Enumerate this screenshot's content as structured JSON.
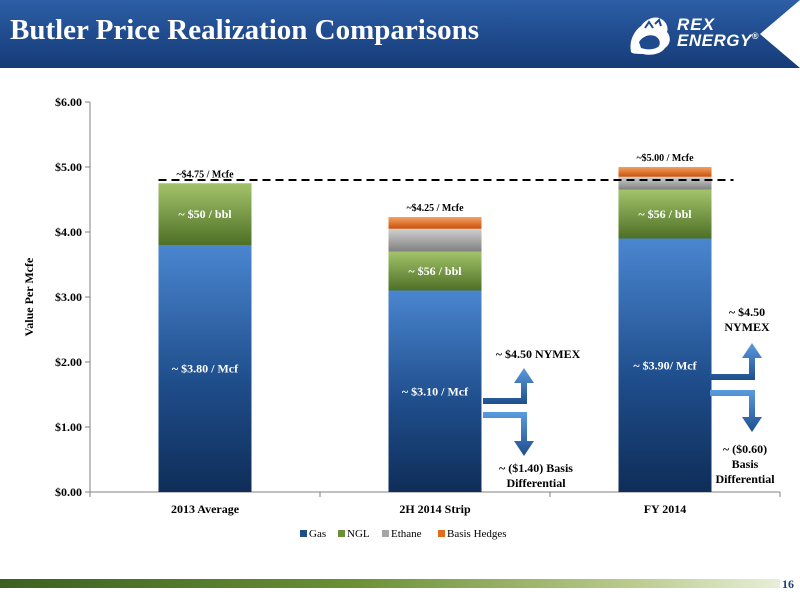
{
  "title": "Butler Price Realization Comparisons",
  "logo": {
    "line1": "REX",
    "line2": "ENERGY",
    "trademark": "®",
    "icon": "lion-icon"
  },
  "page_number": "16",
  "colors": {
    "gas": "#1f4e8c",
    "ngl": "#6b8e3a",
    "ethane": "#a6a6a6",
    "basis_hedges": "#e36c1a",
    "header": "#1f4a8c",
    "arrow": "#3c78c8"
  },
  "chart_data": {
    "type": "bar",
    "stacked": true,
    "categories": [
      "2013 Average",
      "2H 2014 Strip",
      "FY 2014"
    ],
    "series": [
      {
        "name": "Gas",
        "values": [
          3.8,
          3.1,
          3.9
        ]
      },
      {
        "name": "NGL",
        "values": [
          0.95,
          0.6,
          0.75
        ]
      },
      {
        "name": "Ethane",
        "values": [
          0,
          0.35,
          0.2
        ]
      },
      {
        "name": "Basis Hedges",
        "values": [
          0,
          0.18,
          0.15
        ]
      }
    ],
    "ylabel": "Value Per Mcfe",
    "ylim": [
      0,
      6
    ],
    "yticks": [
      "$0.00",
      "$1.00",
      "$2.00",
      "$3.00",
      "$4.00",
      "$5.00",
      "$6.00"
    ],
    "legend_position": "bottom",
    "reference_line": {
      "value": 4.8,
      "style": "dashed"
    },
    "bar_labels": [
      {
        "category": 0,
        "series": 0,
        "text": "~ $3.80 / Mcf"
      },
      {
        "category": 0,
        "series": 1,
        "text": "~ $50 / bbl"
      },
      {
        "category": 1,
        "series": 0,
        "text": "~ $3.10 / Mcf"
      },
      {
        "category": 1,
        "series": 1,
        "text": "~ $56 / bbl"
      },
      {
        "category": 2,
        "series": 0,
        "text": "~ $3.90/ Mcf"
      },
      {
        "category": 2,
        "series": 1,
        "text": "~ $56 / bbl"
      }
    ],
    "total_labels": [
      "~$4.75 / Mcfe",
      "~$4.25 / Mcfe",
      "~$5.00 / Mcfe"
    ],
    "annotations": {
      "strip_nymex": "~ $4.50 NYMEX",
      "strip_basis_line1": "~ ($1.40) Basis",
      "strip_basis_line2": "Differential",
      "fy_nymex_line1": "~ $4.50",
      "fy_nymex_line2": "NYMEX",
      "fy_basis_line1": "~ ($0.60)",
      "fy_basis_line2": "Basis",
      "fy_basis_line3": "Differential"
    }
  }
}
